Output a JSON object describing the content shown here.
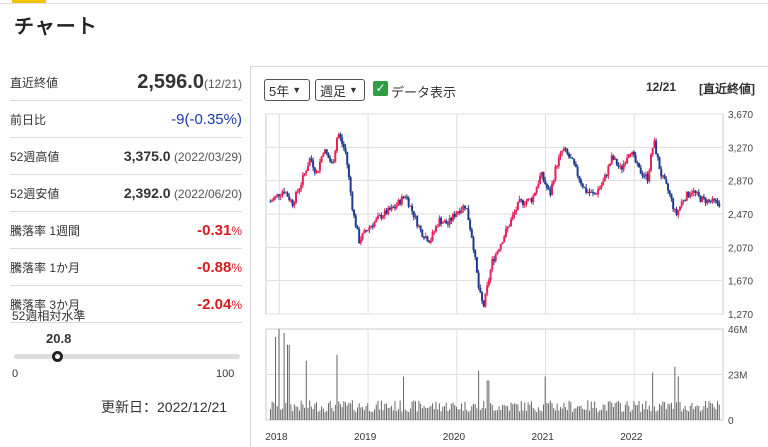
{
  "page": {
    "title": "チャート"
  },
  "stats": {
    "close": {
      "label": "直近終値",
      "value": "2,596.0",
      "date": "(12/21)"
    },
    "change": {
      "label": "前日比",
      "value": "-9",
      "pct": "(-0.35%)"
    },
    "high52": {
      "label": "52週高値",
      "value": "3,375.0",
      "date": "(2022/03/29)"
    },
    "low52": {
      "label": "52週安値",
      "value": "2,392.0",
      "date": "(2022/06/20)"
    },
    "drop1w": {
      "label": "騰落率 1週間",
      "value": "-0.31",
      "unit": "%"
    },
    "drop1m": {
      "label": "騰落率 1か月",
      "value": "-0.88",
      "unit": "%"
    },
    "drop3m": {
      "label": "騰落率 3か月",
      "value": "-2.04",
      "unit": "%"
    }
  },
  "relative_level": {
    "label": "52週相対水準",
    "value": "20.8",
    "min": "0",
    "max": "100",
    "level": 20.8
  },
  "updated": "更新日：2022/12/21",
  "controls": {
    "period": "5年",
    "chart_type": "週足",
    "data_toggle": "データ表示",
    "date": "12/21",
    "closing_label": "[直近終値]"
  },
  "colors": {
    "up": "#e5235b",
    "down": "#1f3b8e",
    "accent": "#f2c300"
  },
  "chart_data": {
    "type": "candlestick",
    "x_ticks": [
      "2018",
      "2019",
      "2020",
      "2021",
      "2022"
    ],
    "price_ticks": [
      "3,670",
      "3,270",
      "2,870",
      "2,470",
      "2,070",
      "1,670",
      "1,270"
    ],
    "volume_ticks": [
      "46M",
      "23M",
      "0"
    ],
    "price_range": [
      1270,
      3670
    ],
    "volume_range": [
      0,
      46
    ],
    "price_path": [
      [
        2017.9,
        2620
      ],
      [
        2018.05,
        2760
      ],
      [
        2018.15,
        2600
      ],
      [
        2018.25,
        2850
      ],
      [
        2018.35,
        3150
      ],
      [
        2018.42,
        2950
      ],
      [
        2018.5,
        3250
      ],
      [
        2018.6,
        3050
      ],
      [
        2018.66,
        3450
      ],
      [
        2018.75,
        3200
      ],
      [
        2018.83,
        2500
      ],
      [
        2018.9,
        2150
      ],
      [
        2019.0,
        2300
      ],
      [
        2019.15,
        2450
      ],
      [
        2019.3,
        2550
      ],
      [
        2019.42,
        2700
      ],
      [
        2019.5,
        2500
      ],
      [
        2019.6,
        2250
      ],
      [
        2019.7,
        2150
      ],
      [
        2019.8,
        2400
      ],
      [
        2019.9,
        2350
      ],
      [
        2020.0,
        2500
      ],
      [
        2020.1,
        2580
      ],
      [
        2020.18,
        2150
      ],
      [
        2020.25,
        1550
      ],
      [
        2020.3,
        1350
      ],
      [
        2020.4,
        1900
      ],
      [
        2020.55,
        2250
      ],
      [
        2020.7,
        2600
      ],
      [
        2020.85,
        2650
      ],
      [
        2020.95,
        2950
      ],
      [
        2021.05,
        2700
      ],
      [
        2021.12,
        3050
      ],
      [
        2021.2,
        3250
      ],
      [
        2021.3,
        3100
      ],
      [
        2021.38,
        2900
      ],
      [
        2021.45,
        2750
      ],
      [
        2021.55,
        2700
      ],
      [
        2021.65,
        2850
      ],
      [
        2021.75,
        3150
      ],
      [
        2021.85,
        3000
      ],
      [
        2021.95,
        3250
      ],
      [
        2022.05,
        3000
      ],
      [
        2022.15,
        2900
      ],
      [
        2022.22,
        3350
      ],
      [
        2022.3,
        2950
      ],
      [
        2022.4,
        2700
      ],
      [
        2022.47,
        2450
      ],
      [
        2022.55,
        2650
      ],
      [
        2022.65,
        2750
      ],
      [
        2022.75,
        2650
      ],
      [
        2022.85,
        2620
      ],
      [
        2022.97,
        2596
      ]
    ],
    "volume_spikes": [
      [
        2017.95,
        42
      ],
      [
        2018.0,
        46
      ],
      [
        2018.05,
        44
      ],
      [
        2018.1,
        38
      ],
      [
        2018.3,
        30
      ],
      [
        2018.65,
        33
      ],
      [
        2019.4,
        22
      ],
      [
        2020.25,
        25
      ],
      [
        2020.35,
        20
      ],
      [
        2021.0,
        22
      ],
      [
        2022.2,
        24
      ],
      [
        2022.45,
        27
      ],
      [
        2022.5,
        22
      ]
    ]
  }
}
